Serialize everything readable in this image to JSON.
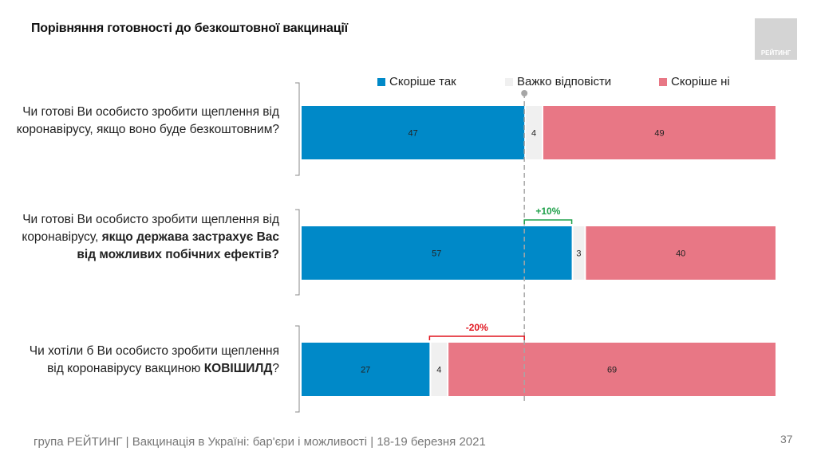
{
  "title": "Порівняння готовності до безкоштовної вакцинації",
  "logo": {
    "text": "РЕЙТИНГ"
  },
  "legend": [
    {
      "label": "Скоріше так",
      "color": "#0089c8"
    },
    {
      "label": "Важко відповісти",
      "color": "#f0f0f0"
    },
    {
      "label": "Скоріше ні",
      "color": "#e87785"
    }
  ],
  "questions": [
    {
      "parts": [
        {
          "text": "Чи готові Ви особисто зробити щеплення від коронавірусу, якщо воно буде безкоштовним?",
          "bold": false
        }
      ]
    },
    {
      "parts": [
        {
          "text": "Чи готові Ви особисто зробити щеплення від коронавірусу, ",
          "bold": false
        },
        {
          "text": "якщо держава застрахує Вас від можливих побічних ефектів?",
          "bold": true
        }
      ]
    },
    {
      "parts": [
        {
          "text": "Чи хотіли б Ви особисто зробити щеплення від коронавірусу вакциною ",
          "bold": false
        },
        {
          "text": "КОВІШИЛД",
          "bold": true
        },
        {
          "text": "?",
          "bold": false
        }
      ]
    }
  ],
  "chart_data": {
    "type": "bar",
    "orientation": "horizontal-stacked-100",
    "title": "Порівняння готовності до безкоштовної вакцинації",
    "categories": [
      "Чи готові Ви особисто зробити щеплення від коронавірусу, якщо воно буде безкоштовним?",
      "Чи готові Ви особисто зробити щеплення від коронавірусу, якщо держава застрахує Вас від можливих побічних ефектів?",
      "Чи хотіли б Ви особисто зробити щеплення від коронавірусу вакциною КОВІШИЛД?"
    ],
    "series": [
      {
        "name": "Скоріше так",
        "color": "#0089c8",
        "values": [
          47,
          57,
          27
        ]
      },
      {
        "name": "Важко відповісти",
        "color": "#f0f0f0",
        "values": [
          4,
          3,
          4
        ]
      },
      {
        "name": "Скоріше ні",
        "color": "#e87785",
        "values": [
          49,
          40,
          69
        ]
      }
    ],
    "xlim": [
      0,
      100
    ],
    "reference_line": {
      "value": 47,
      "style": "dashed",
      "color": "#a6a6a6"
    },
    "annotations": [
      {
        "row": 1,
        "label": "+10%",
        "from": 47,
        "to": 57,
        "color": "#1fa04a"
      },
      {
        "row": 2,
        "label": "-20%",
        "from": 27,
        "to": 47,
        "color": "#e0141e"
      }
    ],
    "legend_position": "top"
  },
  "footer": "група РЕЙТИНГ | Вакцинація в Україні: бар'єри і можливості | 18-19 березня 2021",
  "page_number": "37"
}
